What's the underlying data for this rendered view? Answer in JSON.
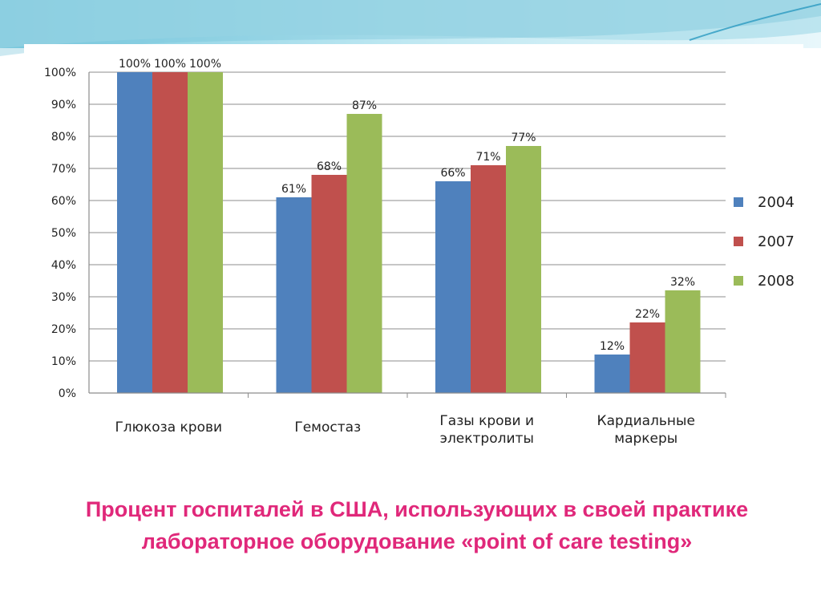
{
  "slide": {
    "caption": "Процент госпиталей в США, использующих в своей практике лабораторное оборудование «point of care testing»"
  },
  "chart_data": {
    "type": "bar",
    "categories": [
      [
        "Глюкоза крови"
      ],
      [
        "Гемостаз"
      ],
      [
        "Газы крови и",
        "электролиты"
      ],
      [
        "Кардиальные",
        "маркеры"
      ]
    ],
    "series": [
      {
        "name": "2004",
        "color": "#4f81bd",
        "values": [
          100,
          61,
          66,
          12
        ],
        "labels": [
          "100%",
          "61%",
          "66%",
          "12%"
        ]
      },
      {
        "name": "2007",
        "color": "#c0504d",
        "values": [
          100,
          68,
          71,
          22
        ],
        "labels": [
          "100%",
          "68%",
          "71%",
          "22%"
        ]
      },
      {
        "name": "2008",
        "color": "#9bbb59",
        "values": [
          100,
          87,
          77,
          32
        ],
        "labels": [
          "100%",
          "87%",
          "77%",
          "32%"
        ]
      }
    ],
    "yticks": [
      "0%",
      "10%",
      "20%",
      "30%",
      "40%",
      "50%",
      "60%",
      "70%",
      "80%",
      "90%",
      "100%"
    ],
    "ylim": [
      0,
      100
    ],
    "grid": true,
    "legend": "right"
  }
}
